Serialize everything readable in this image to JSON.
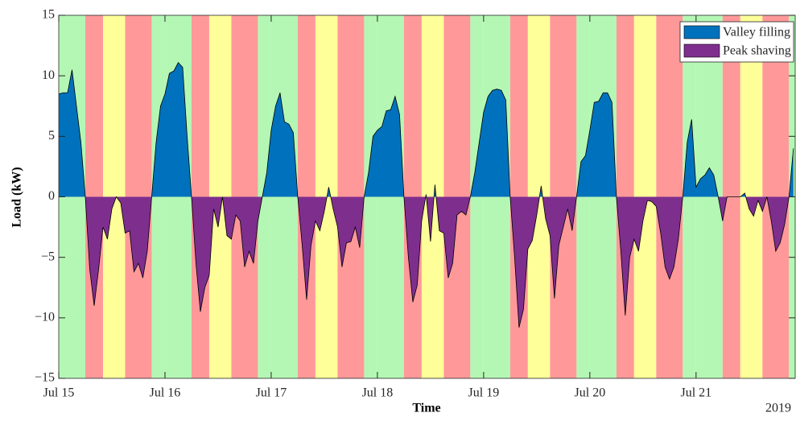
{
  "chart_data": {
    "type": "area",
    "xlabel": "Time",
    "ylabel": "Load (kW)",
    "x_secondary_label": "2019",
    "xlim": [
      0,
      166.4
    ],
    "ylim": [
      -15,
      15
    ],
    "xticks": [
      {
        "value": 0,
        "label": "Jul 15"
      },
      {
        "value": 24,
        "label": "Jul 16"
      },
      {
        "value": 48,
        "label": "Jul 17"
      },
      {
        "value": 72,
        "label": "Jul 18"
      },
      {
        "value": 96,
        "label": "Jul 19"
      },
      {
        "value": 120,
        "label": "Jul 20"
      },
      {
        "value": 144,
        "label": "Jul 21"
      }
    ],
    "yticks": [
      {
        "value": -15,
        "label": "−15"
      },
      {
        "value": -10,
        "label": "−10"
      },
      {
        "value": -5,
        "label": "−5"
      },
      0,
      5,
      10,
      15
    ],
    "band_period": 24,
    "bands": [
      {
        "from": 0,
        "to": 6,
        "color": "#b4f7b4"
      },
      {
        "from": 6,
        "to": 10,
        "color": "#ff9999"
      },
      {
        "from": 10,
        "to": 15,
        "color": "#ffff99"
      },
      {
        "from": 15,
        "to": 21,
        "color": "#ff9999"
      },
      {
        "from": 21,
        "to": 24,
        "color": "#b4f7b4"
      }
    ],
    "fills": [
      {
        "name": "Valley filling",
        "color": "#0072bd"
      },
      {
        "name": "Peak shaving",
        "color": "#7e2f8e"
      }
    ],
    "legend_position": "upper right",
    "x": [
      0,
      1,
      2,
      3,
      4,
      5,
      6,
      7,
      8,
      9,
      10,
      11,
      12,
      13,
      14,
      15,
      16,
      17,
      18,
      19,
      20,
      21,
      22,
      23,
      24,
      25,
      26,
      27,
      28,
      29,
      30,
      31,
      32,
      33,
      34,
      35,
      36,
      37,
      38,
      39,
      40,
      41,
      42,
      43,
      44,
      45,
      46,
      47,
      48,
      49,
      50,
      51,
      52,
      53,
      54,
      55,
      56,
      57,
      58,
      59,
      60,
      61,
      62,
      63,
      64,
      65,
      66,
      67,
      68,
      69,
      70,
      71,
      72,
      73,
      74,
      75,
      76,
      77,
      78,
      79,
      80,
      81,
      82,
      83,
      84,
      85,
      86,
      87,
      88,
      89,
      90,
      91,
      92,
      93,
      94,
      95,
      96,
      97,
      98,
      99,
      100,
      101,
      102,
      103,
      104,
      105,
      106,
      107,
      108,
      109,
      110,
      111,
      112,
      113,
      114,
      115,
      116,
      117,
      118,
      119,
      120,
      121,
      122,
      123,
      124,
      125,
      126,
      127,
      128,
      129,
      130,
      131,
      132,
      133,
      134,
      135,
      136,
      137,
      138,
      139,
      140,
      141,
      142,
      143,
      144,
      145,
      146,
      147,
      148,
      149,
      150,
      151,
      152,
      153,
      154,
      155,
      156,
      157,
      158,
      159,
      160,
      161,
      162,
      163,
      164,
      165,
      166
    ],
    "values": [
      8.5,
      8.6,
      8.6,
      10.5,
      7.5,
      4.5,
      0,
      -6,
      -9,
      -6,
      -2.5,
      -3.5,
      -1,
      0,
      -0.5,
      -3,
      -2.8,
      -6.2,
      -5.5,
      -6.7,
      -4.5,
      0,
      4.5,
      7.5,
      8.5,
      10.2,
      10.4,
      11.1,
      10.7,
      5,
      0,
      -5.5,
      -9.5,
      -7.5,
      -6.5,
      -1,
      -2.5,
      0,
      -3.2,
      -3.5,
      -1.5,
      -2,
      -5.8,
      -4.5,
      -5.5,
      -2,
      0,
      2,
      5.5,
      7.5,
      8.6,
      6.2,
      6,
      5.3,
      0,
      -4,
      -8.5,
      -4,
      -2,
      -2.8,
      -1.2,
      0.8,
      -1,
      -2.5,
      -5.8,
      -3.8,
      -3.7,
      -2.5,
      -4.2,
      0,
      2,
      5,
      5.5,
      5.8,
      7.1,
      7.2,
      8.3,
      6.8,
      0,
      -5,
      -8.7,
      -7.3,
      -2,
      0.2,
      -3.7,
      1,
      -2.8,
      -3,
      -6.7,
      -5.5,
      -1.5,
      -1.2,
      -1.5,
      0,
      2,
      4.5,
      7,
      8.3,
      8.8,
      8.9,
      8.8,
      8,
      0,
      -5,
      -10.8,
      -9.3,
      -4.3,
      -3.6,
      -1.5,
      0.9,
      -1.8,
      -3.2,
      -8.4,
      -4,
      -2.5,
      -1,
      -2.8,
      0,
      2.9,
      3.4,
      5.5,
      7.8,
      7.9,
      8.6,
      8.6,
      7.8,
      0,
      -4.5,
      -9.8,
      -5,
      -3.5,
      -4.5,
      -2,
      -0.3,
      -0.4,
      -0.8,
      -3,
      -5.8,
      -6.8,
      -5.8,
      -3.5,
      0,
      4.5,
      6.4,
      0.8,
      1.5,
      1.8,
      2.4,
      1.8,
      0,
      -2,
      0,
      0,
      0,
      0,
      0.3,
      -1,
      -1.6,
      -0.3,
      -1.2,
      0,
      -2,
      -4.5,
      -3.8,
      -2.3,
      0,
      4
    ]
  }
}
